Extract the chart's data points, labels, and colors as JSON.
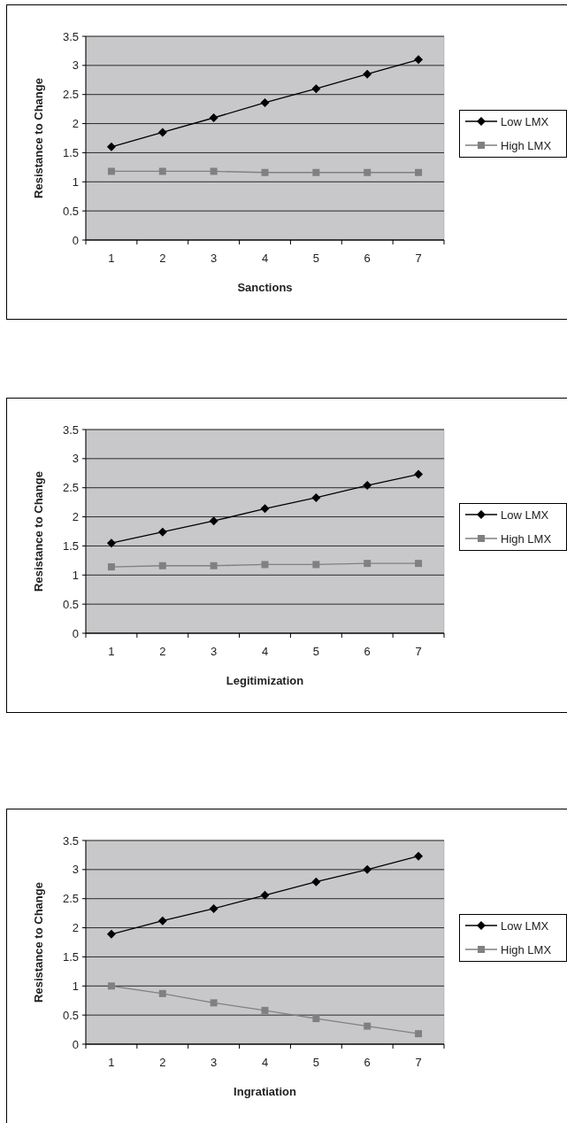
{
  "chart_data": [
    {
      "type": "line",
      "xlabel": "Sanctions",
      "ylabel": "Resistance to Change",
      "categories": [
        "1",
        "2",
        "3",
        "4",
        "5",
        "6",
        "7"
      ],
      "ylim": [
        0,
        3.5
      ],
      "yticks": [
        0,
        0.5,
        1,
        1.5,
        2,
        2.5,
        3,
        3.5
      ],
      "grid": "y",
      "legend": "right",
      "series": [
        {
          "name": "Low LMX",
          "color": "#000000",
          "marker": "diamond",
          "values": [
            1.6,
            1.85,
            2.1,
            2.36,
            2.6,
            2.85,
            3.1
          ]
        },
        {
          "name": "High LMX",
          "color": "#808080",
          "marker": "square",
          "values": [
            1.18,
            1.18,
            1.18,
            1.16,
            1.16,
            1.16,
            1.16
          ]
        }
      ]
    },
    {
      "type": "line",
      "xlabel": "Legitimization",
      "ylabel": "Resistance to Change",
      "categories": [
        "1",
        "2",
        "3",
        "4",
        "5",
        "6",
        "7"
      ],
      "ylim": [
        0,
        3.5
      ],
      "yticks": [
        0,
        0.5,
        1,
        1.5,
        2,
        2.5,
        3,
        3.5
      ],
      "grid": "y",
      "legend": "right",
      "series": [
        {
          "name": "Low LMX",
          "color": "#000000",
          "marker": "diamond",
          "values": [
            1.55,
            1.74,
            1.93,
            2.14,
            2.33,
            2.54,
            2.73
          ]
        },
        {
          "name": "High LMX",
          "color": "#808080",
          "marker": "square",
          "values": [
            1.14,
            1.16,
            1.16,
            1.18,
            1.18,
            1.2,
            1.2
          ]
        }
      ]
    },
    {
      "type": "line",
      "xlabel": "Ingratiation",
      "ylabel": "Resistance to Change",
      "categories": [
        "1",
        "2",
        "3",
        "4",
        "5",
        "6",
        "7"
      ],
      "ylim": [
        0,
        3.5
      ],
      "yticks": [
        0,
        0.5,
        1,
        1.5,
        2,
        2.5,
        3,
        3.5
      ],
      "grid": "y",
      "legend": "right",
      "series": [
        {
          "name": "Low LMX",
          "color": "#000000",
          "marker": "diamond",
          "values": [
            1.89,
            2.12,
            2.33,
            2.56,
            2.79,
            3.0,
            3.23
          ]
        },
        {
          "name": "High LMX",
          "color": "#808080",
          "marker": "square",
          "values": [
            1.0,
            0.87,
            0.71,
            0.58,
            0.44,
            0.31,
            0.18
          ]
        }
      ]
    }
  ]
}
